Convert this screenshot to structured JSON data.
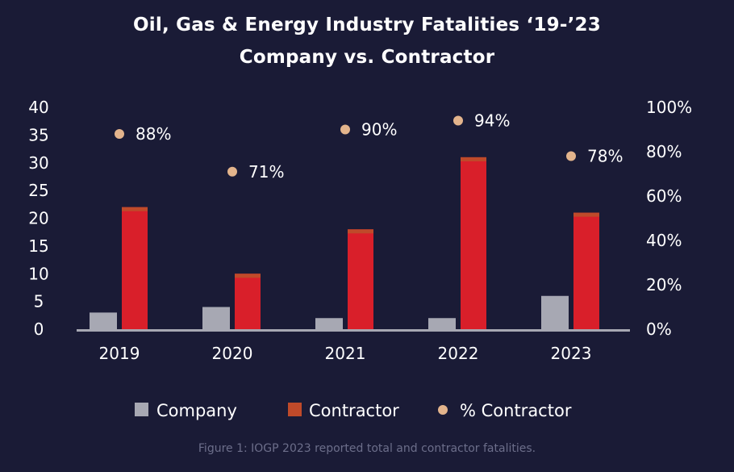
{
  "chart_data": {
    "type": "bar",
    "title": "Oil, Gas & Energy Industry Fatalities ‘19-’23",
    "subtitle": "Company vs. Contractor",
    "categories": [
      "2019",
      "2020",
      "2021",
      "2022",
      "2023"
    ],
    "series": [
      {
        "name": "Company",
        "values": [
          3,
          4,
          2,
          2,
          6
        ],
        "color": "#a7a8b3"
      },
      {
        "name": "Contractor",
        "values": [
          22,
          10,
          18,
          31,
          21
        ],
        "color": "#d91f2a",
        "cap_color": "#bf4a2a"
      }
    ],
    "secondary_series": {
      "name": "% Contractor",
      "values": [
        88,
        71,
        90,
        94,
        78
      ],
      "labels": [
        "88%",
        "71%",
        "90%",
        "94%",
        "78%"
      ],
      "color": "#e3b48c"
    },
    "y_left": {
      "ylim": [
        0,
        40
      ],
      "ticks": [
        "0",
        "5",
        "10",
        "15",
        "20",
        "25",
        "30",
        "35",
        "40"
      ]
    },
    "y_right": {
      "ylim": [
        0,
        100
      ],
      "ticks": [
        "0%",
        "20%",
        "40%",
        "60%",
        "80%",
        "100%"
      ]
    },
    "legend": [
      "Company",
      "Contractor",
      "% Contractor"
    ],
    "legend_position": "bottom",
    "grid": false
  },
  "caption": "Figure 1: IOGP 2023 reported total and contractor fatalities.",
  "colors": {
    "background": "#1a1b36",
    "axis": "#a7a8b3",
    "text": "#ffffff",
    "caption": "#6c6e8a"
  }
}
